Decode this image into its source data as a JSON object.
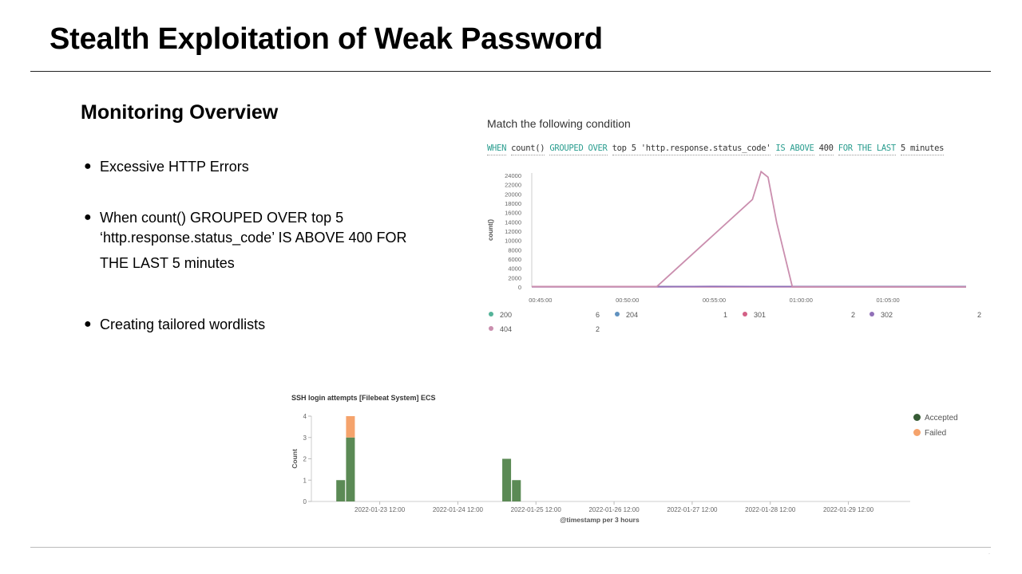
{
  "slide": {
    "title": "Stealth Exploitation of Weak Password",
    "subtitle": "Monitoring Overview",
    "bullet_marker": "●",
    "bullets": [
      {
        "lines": [
          "Excessive HTTP Errors"
        ]
      },
      {
        "lines": [
          "When count() GROUPED OVER top 5",
          "‘http.response.status_code’ IS ABOVE 400 FOR",
          "THE LAST 5 minutes"
        ]
      },
      {
        "lines": [
          "Creating tailored wordlists"
        ]
      }
    ],
    "footer_mark": "·"
  },
  "condition_panel": {
    "heading": "Match the following condition",
    "expr": {
      "when": "WHEN",
      "count": "count()",
      "grouped": "GROUPED OVER",
      "top": "top 5 'http.response.status_code'",
      "above": "IS ABOVE",
      "threshold": "400",
      "for_last": "FOR THE LAST",
      "window": "5 minutes"
    },
    "colors": {
      "200": "#54b399",
      "204": "#6092c0",
      "301": "#d36086",
      "302": "#9170b8",
      "404": "#ca8eae"
    }
  },
  "chart_data": [
    {
      "type": "line",
      "title": "",
      "xlabel": "",
      "ylabel": "count()",
      "x_ticks": [
        "00:45:00",
        "00:50:00",
        "00:55:00",
        "01:00:00",
        "01:05:00"
      ],
      "y_ticks": [
        0,
        2000,
        4000,
        6000,
        8000,
        10000,
        12000,
        14000,
        16000,
        18000,
        20000,
        22000,
        24000
      ],
      "ylim": [
        0,
        24500
      ],
      "x_unit": "minutes after 00:45:00",
      "xlim": [
        -0.5,
        24.5
      ],
      "series": [
        {
          "name": "200",
          "legend_value": "6",
          "color": "#54b399",
          "x": [
            -0.5,
            24.5
          ],
          "y": [
            100,
            100
          ]
        },
        {
          "name": "204",
          "legend_value": "1",
          "color": "#6092c0",
          "x": [
            -0.5,
            24.5
          ],
          "y": [
            60,
            60
          ]
        },
        {
          "name": "301",
          "legend_value": "2",
          "color": "#d36086",
          "x": [
            -0.5,
            24.5
          ],
          "y": [
            40,
            40
          ]
        },
        {
          "name": "302",
          "legend_value": "2",
          "color": "#9170b8",
          "x": [
            -0.5,
            6.7,
            10,
            14.5,
            24.5
          ],
          "y": [
            50,
            50,
            120,
            80,
            50
          ]
        },
        {
          "name": "404",
          "legend_value": "2",
          "color": "#ca8eae",
          "x": [
            -0.5,
            6.7,
            12.2,
            12.7,
            13.1,
            13.6,
            14.5,
            24.5
          ],
          "y": [
            100,
            100,
            18800,
            24800,
            23600,
            13800,
            0,
            0
          ]
        }
      ],
      "legend": "bottom"
    },
    {
      "type": "bar",
      "title": "SSH login attempts [Filebeat System] ECS",
      "xlabel": "@timestamp per 3 hours",
      "ylabel": "Count",
      "x_ticks": [
        "2022-01-23 12:00",
        "2022-01-24 12:00",
        "2022-01-25 12:00",
        "2022-01-26 12:00",
        "2022-01-27 12:00",
        "2022-01-28 12:00",
        "2022-01-29 12:00"
      ],
      "y_ticks": [
        0,
        1,
        2,
        3,
        4
      ],
      "ylim": [
        0,
        4
      ],
      "x_unit": "hours after 2022-01-23 12:00",
      "xlim": [
        -21,
        163
      ],
      "bar_width_hours": 2.7,
      "series": [
        {
          "name": "Accepted",
          "color": "#5b8a55",
          "x": [
            -12,
            -9,
            39,
            42
          ],
          "y": [
            1,
            3,
            2,
            1
          ]
        },
        {
          "name": "Failed",
          "color": "#f5a36c",
          "x": [
            -12,
            -9,
            39,
            42
          ],
          "y": [
            0,
            1,
            0,
            0
          ]
        }
      ],
      "legend": "top-right"
    }
  ]
}
